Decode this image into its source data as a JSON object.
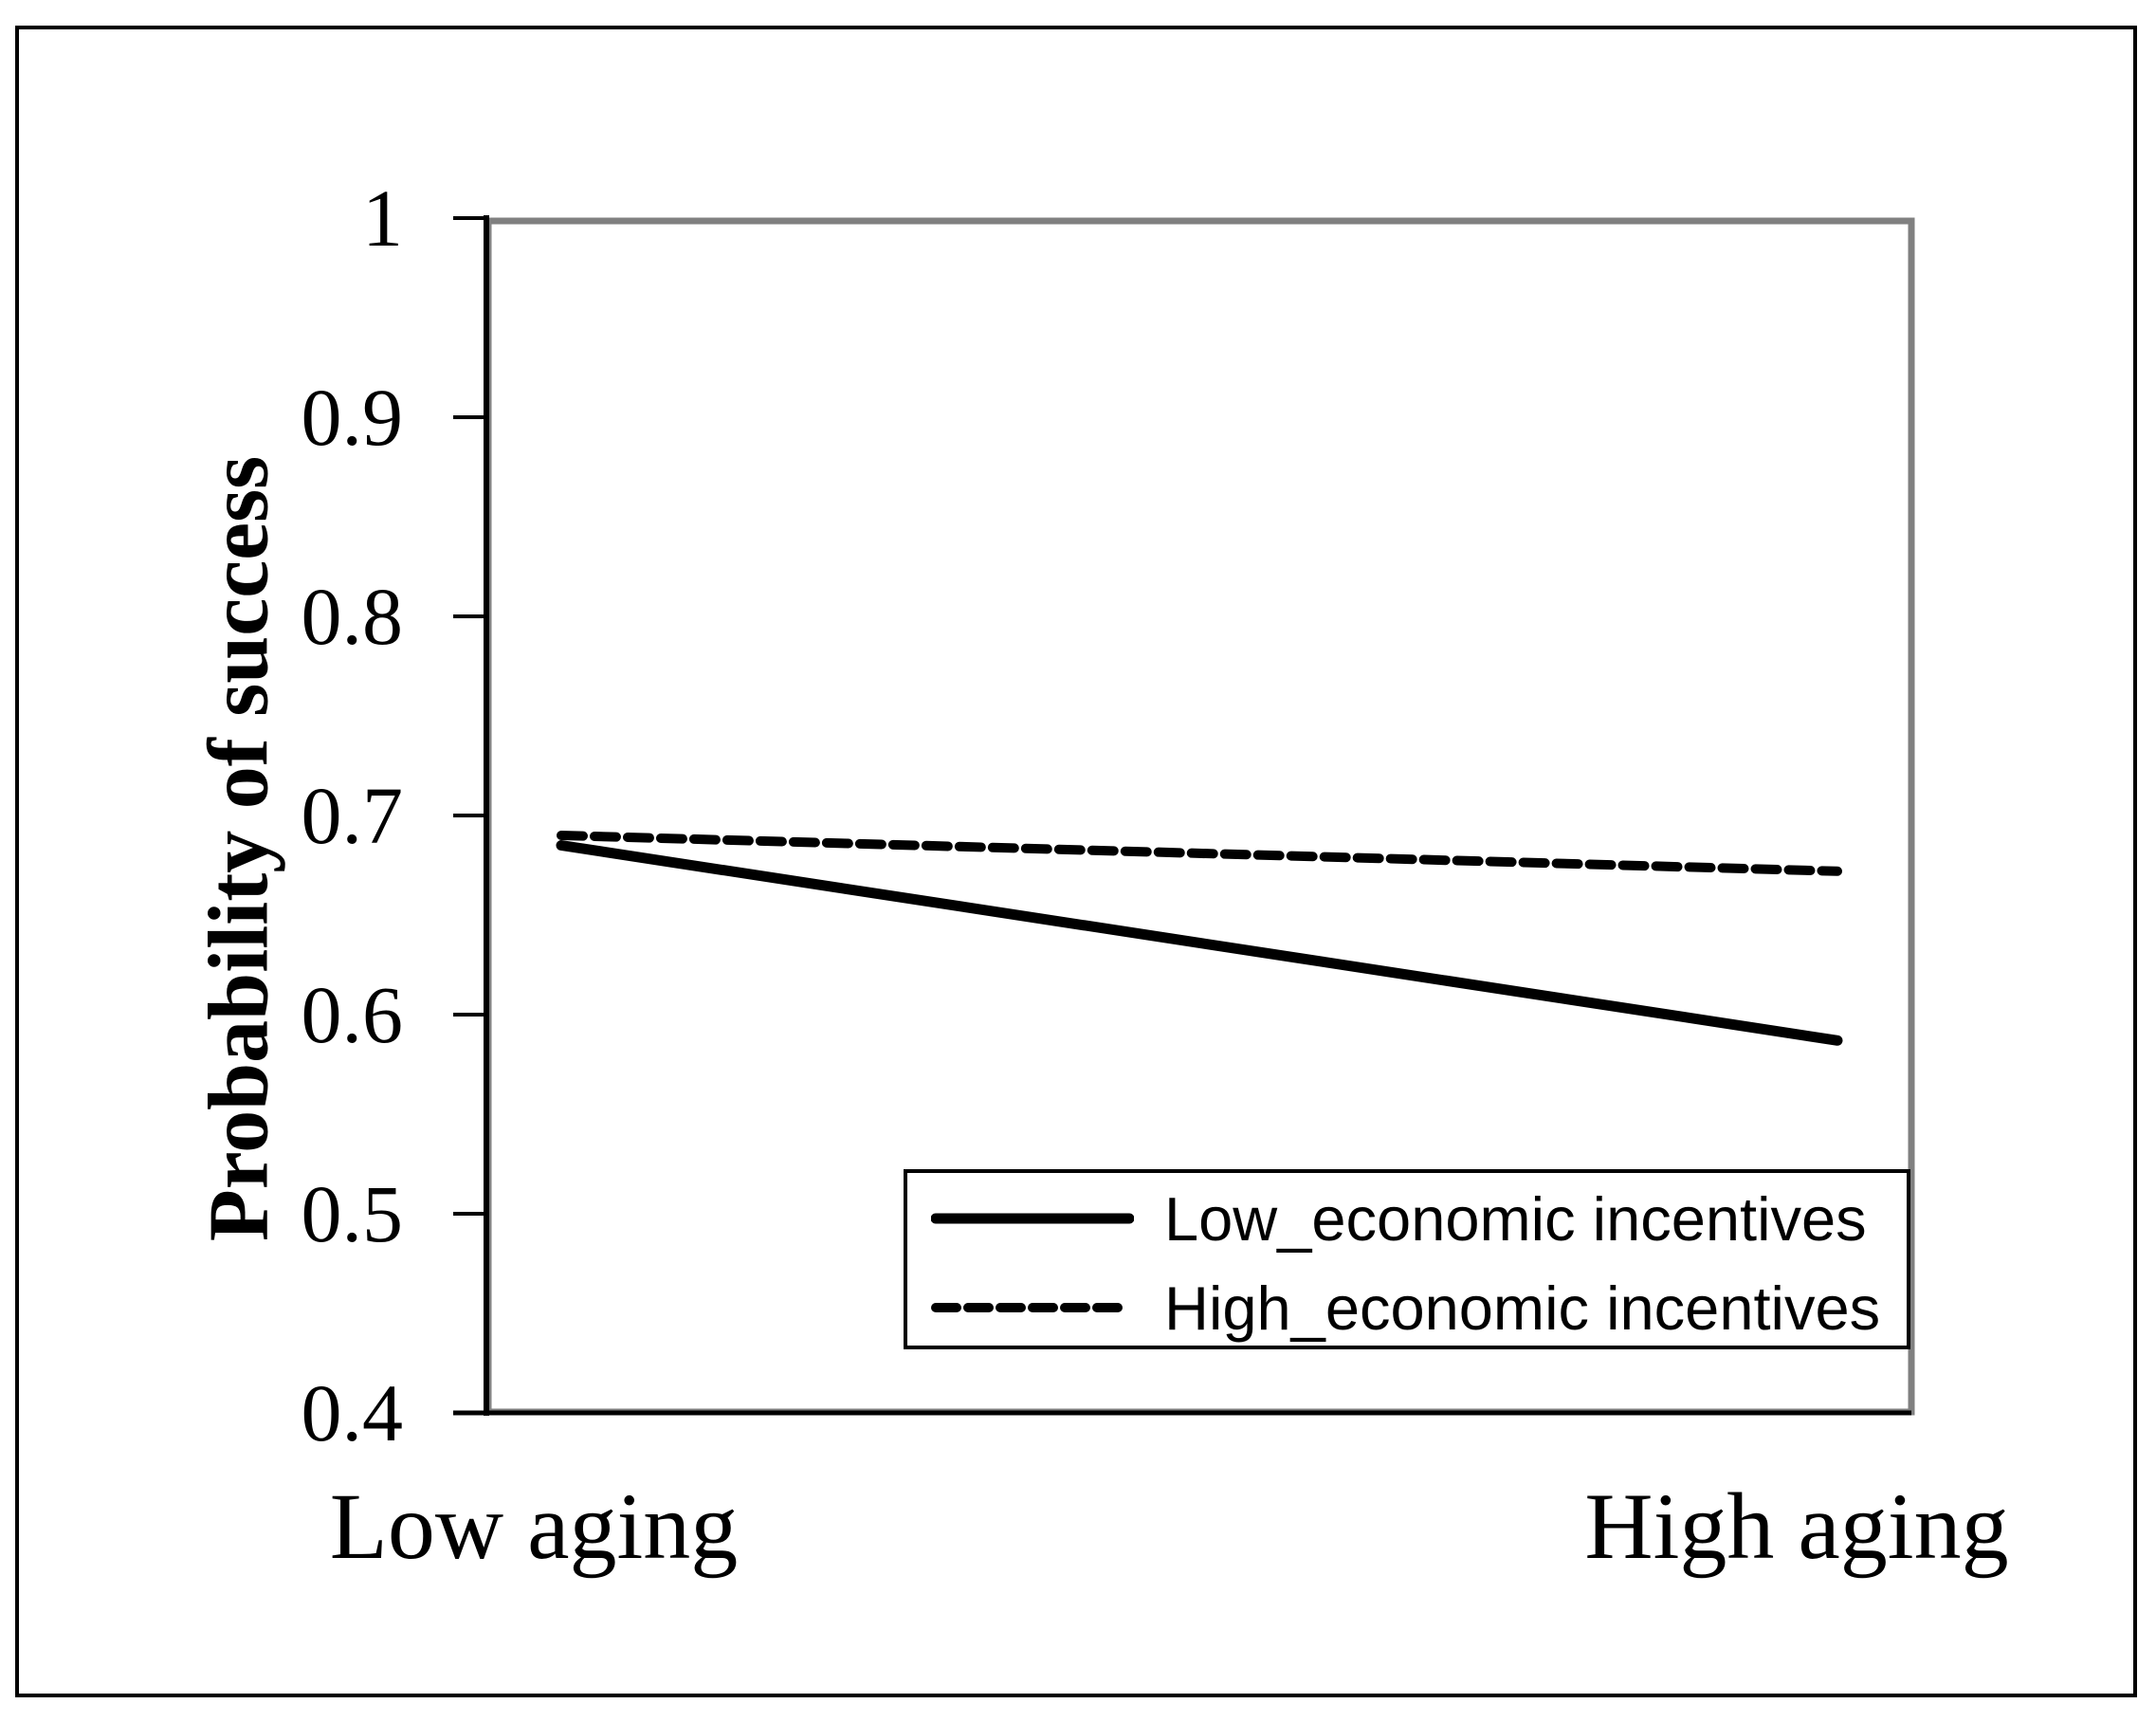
{
  "figure": {
    "background_color": "#ffffff",
    "outer_border_color": "#000000"
  },
  "chart_data": {
    "type": "line",
    "title": "",
    "xlabel": "",
    "ylabel": "Probability of success",
    "categories": [
      "Low aging",
      "High aging"
    ],
    "series": [
      {
        "name": "Low_economic incentives",
        "style": "solid",
        "color": "#000000",
        "values": [
          0.685,
          0.587
        ]
      },
      {
        "name": "High_economic incentives",
        "style": "dashed",
        "color": "#000000",
        "values": [
          0.69,
          0.672
        ]
      }
    ],
    "ylim": [
      0.4,
      1.0
    ],
    "yticks": [
      1.0,
      0.9,
      0.8,
      0.7,
      0.6,
      0.5,
      0.4
    ],
    "ytick_labels": [
      "1",
      "0.9",
      "0.8",
      "0.7",
      "0.6",
      "0.5",
      "0.4"
    ],
    "grid": false,
    "legend_position": "inside-bottom-right",
    "axis_color": "#000000",
    "plot_border_color": "#808080"
  }
}
